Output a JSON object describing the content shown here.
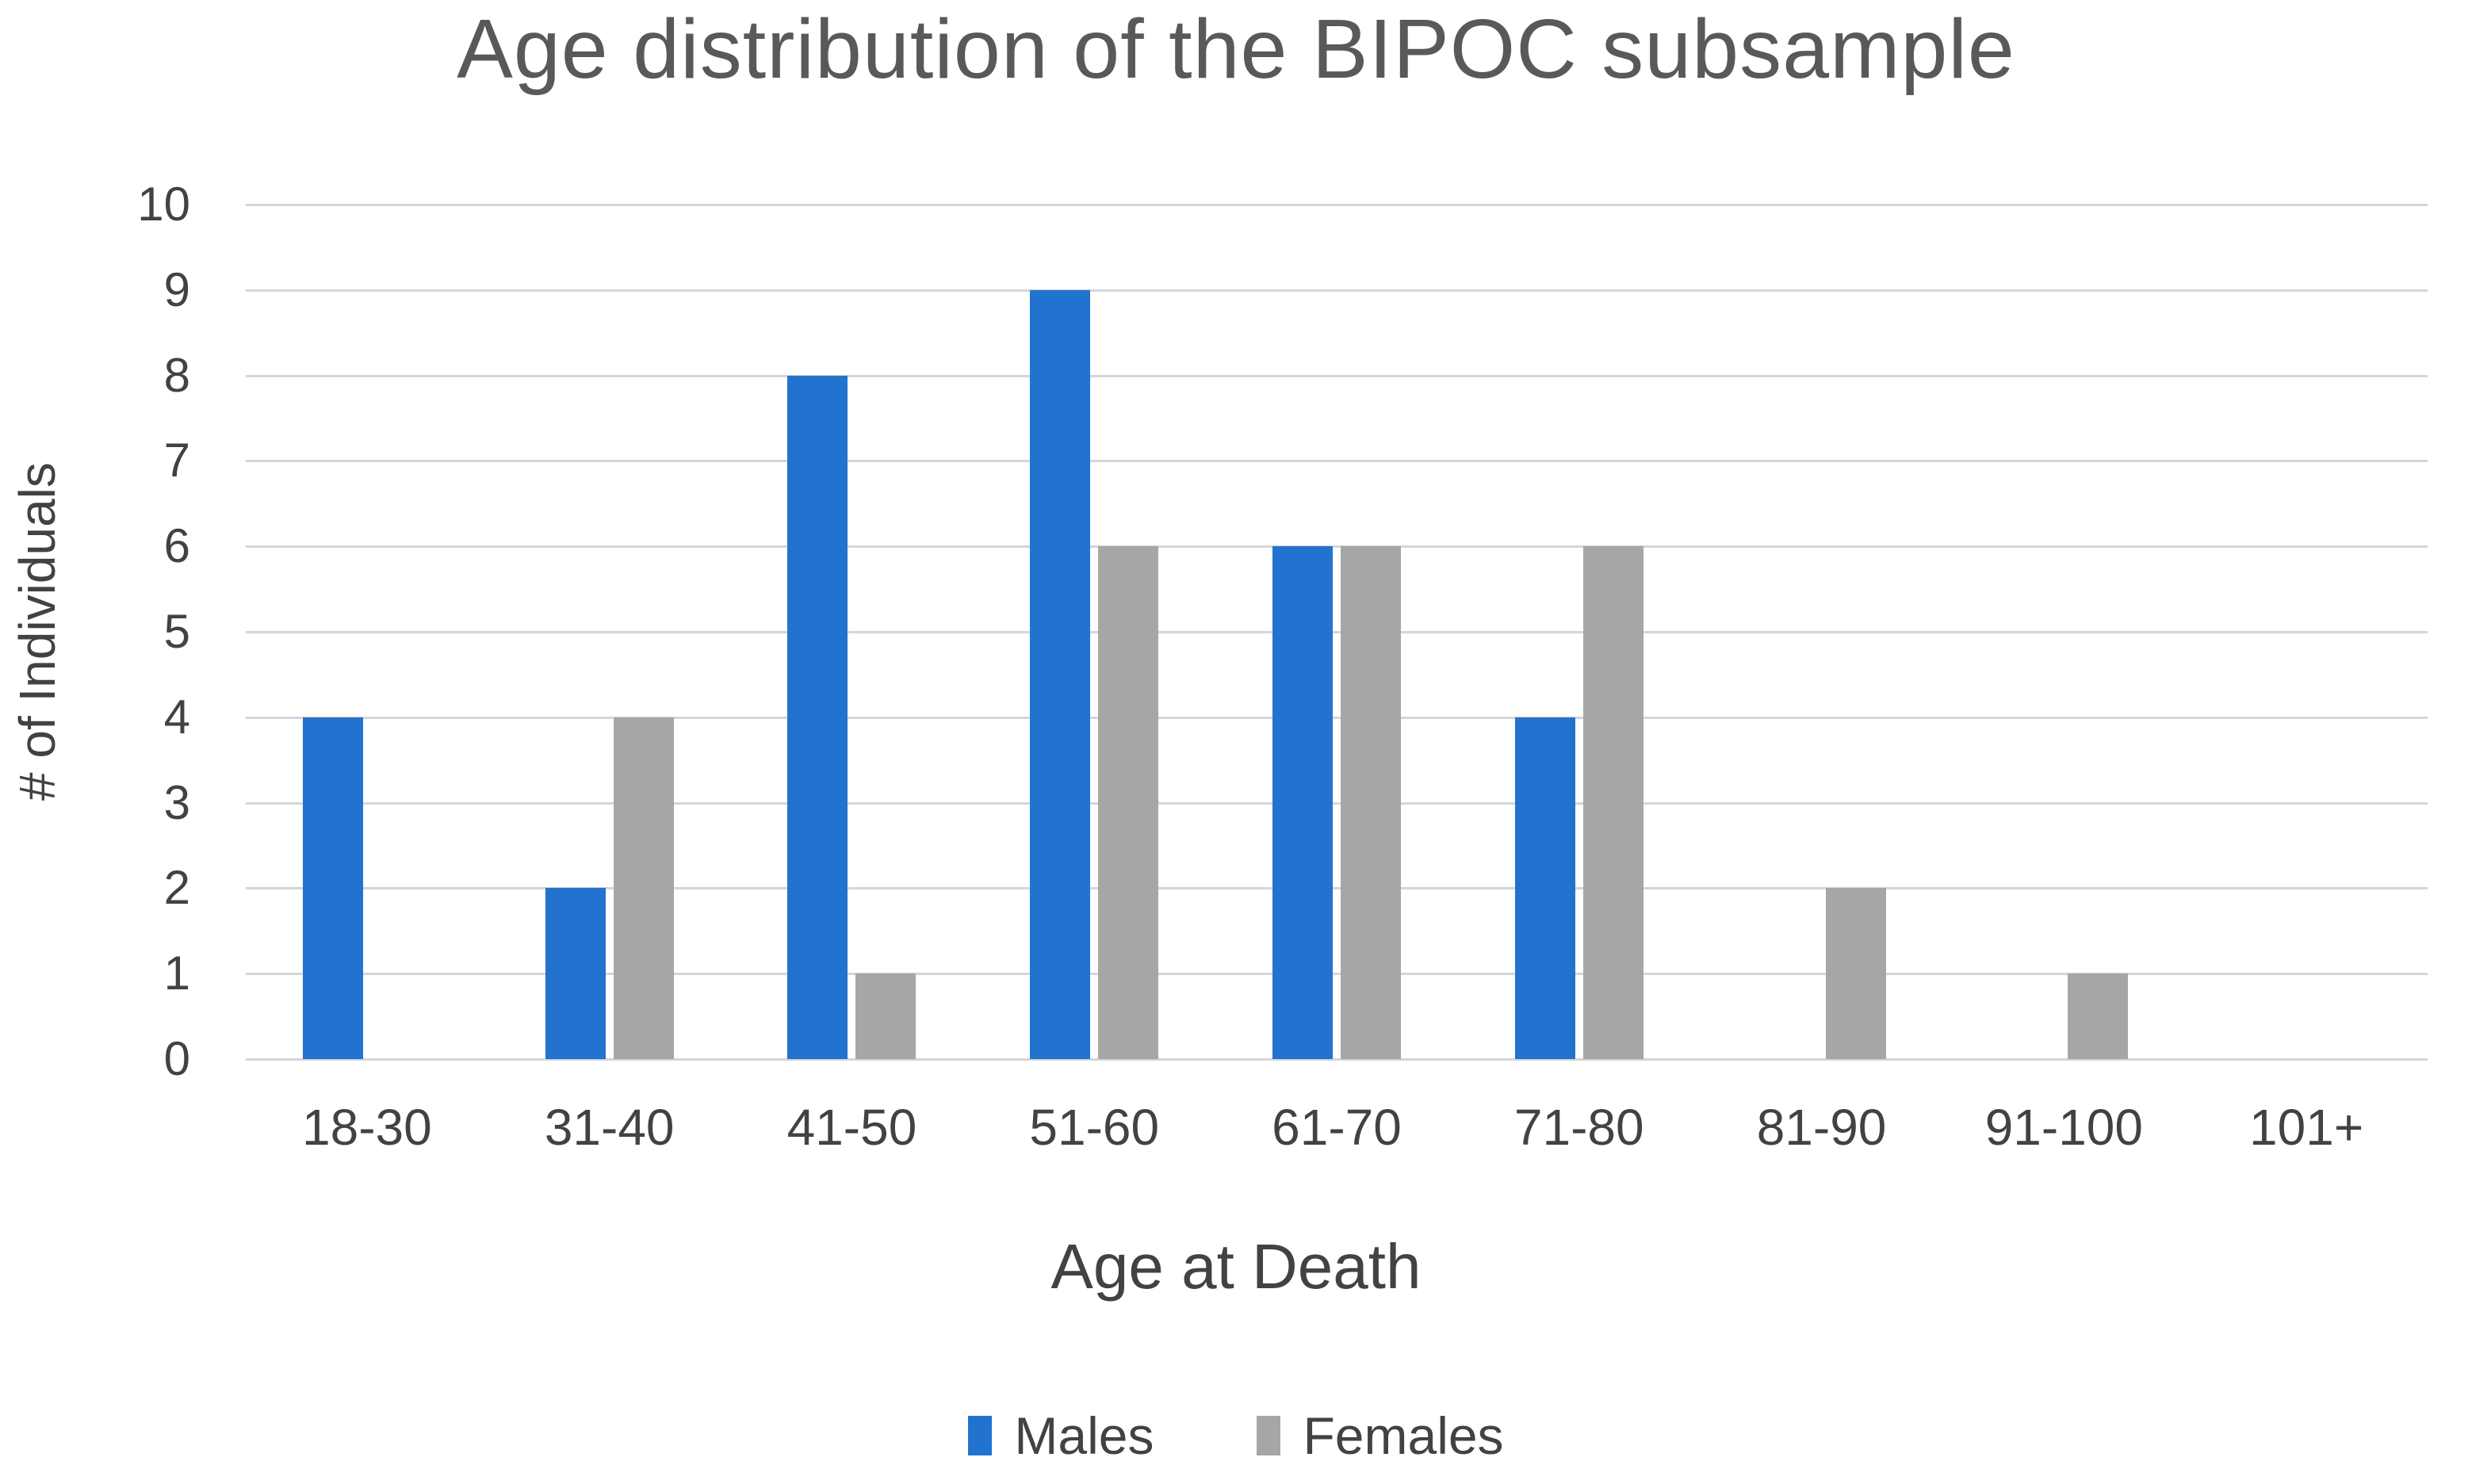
{
  "title": "Age distribution of the BIPOC subsample",
  "chart_data": {
    "type": "bar",
    "title": "Age distribution of the BIPOC subsample",
    "categories": [
      "18-30",
      "31-40",
      "41-50",
      "51-60",
      "61-70",
      "71-80",
      "81-90",
      "91-100",
      "101+"
    ],
    "series": [
      {
        "name": "Males",
        "color": "#2273cf",
        "values": [
          4,
          2,
          8,
          9,
          6,
          4,
          0,
          0,
          0
        ]
      },
      {
        "name": "Females",
        "color": "#a6a6a6",
        "values": [
          0,
          4,
          1,
          6,
          6,
          6,
          2,
          1,
          0
        ]
      }
    ],
    "xlabel": "Age at Death",
    "ylabel": "# of Individuals",
    "ylim": [
      0,
      10
    ],
    "ytick_step": 1,
    "yticks": [
      0,
      1,
      2,
      3,
      4,
      5,
      6,
      7,
      8,
      9,
      10
    ],
    "grid": true,
    "gridline_color": "#d5d5d9",
    "legend_position": "bottom",
    "title_color": "#595959",
    "axis_text_color": "#424242",
    "background_color": "#ffffff"
  }
}
